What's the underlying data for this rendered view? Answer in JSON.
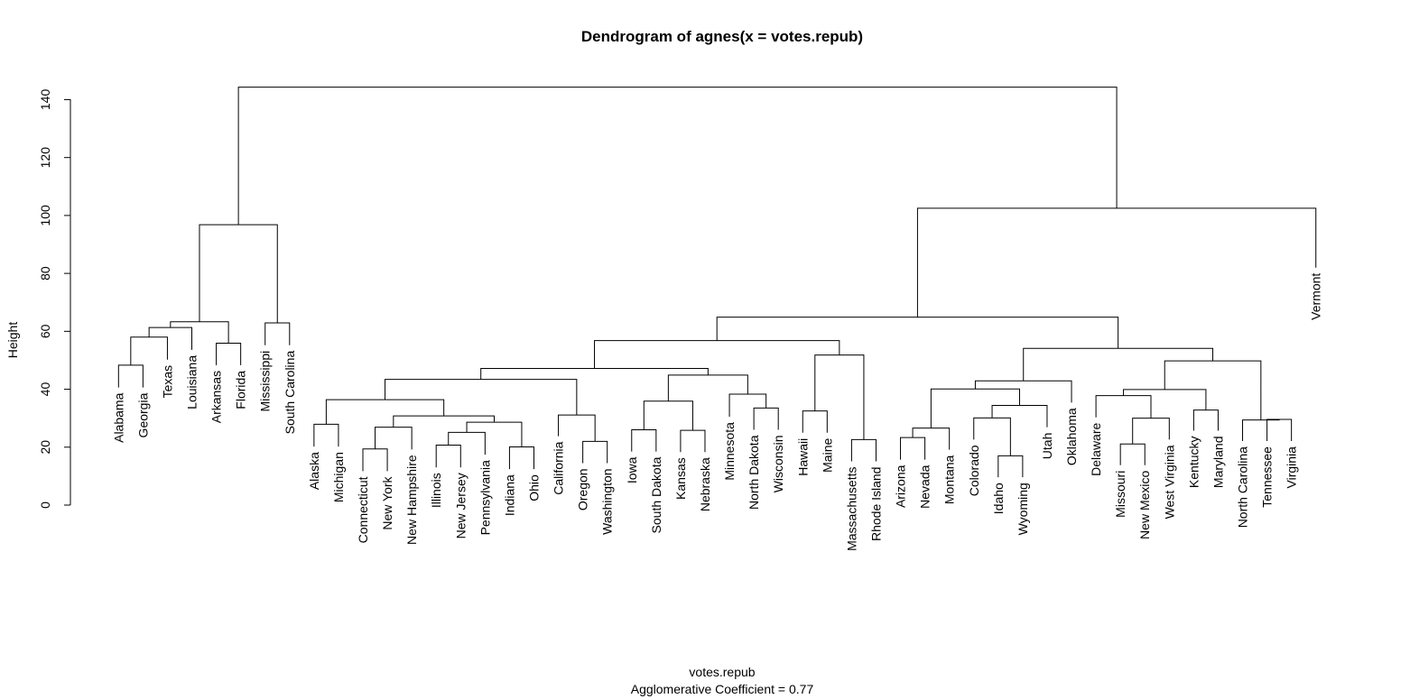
{
  "chart_data": {
    "type": "dendrogram",
    "title": "Dendrogram of  agnes(x = votes.repub)",
    "xlabel": "votes.repub",
    "subtitle": "Agglomerative Coefficient =  0.77",
    "ylabel": "Height",
    "ylim": [
      0,
      140
    ],
    "yticks": [
      0,
      20,
      40,
      60,
      80,
      100,
      120,
      140
    ],
    "leaves": [
      {
        "label": "Alabama",
        "x": 1,
        "h": 40.6
      },
      {
        "label": "Georgia",
        "x": 2,
        "h": 40.6
      },
      {
        "label": "Texas",
        "x": 3,
        "h": 50.2
      },
      {
        "label": "Louisiana",
        "x": 4,
        "h": 53.6
      },
      {
        "label": "Arkansas",
        "x": 5,
        "h": 48.3
      },
      {
        "label": "Florida",
        "x": 6,
        "h": 48.3
      },
      {
        "label": "Mississippi",
        "x": 7,
        "h": 55.2
      },
      {
        "label": "South Carolina",
        "x": 8,
        "h": 55.2
      },
      {
        "label": "Alaska",
        "x": 9,
        "h": 20.2
      },
      {
        "label": "Michigan",
        "x": 10,
        "h": 20.2
      },
      {
        "label": "Connecticut",
        "x": 11,
        "h": 11.7
      },
      {
        "label": "New York",
        "x": 12,
        "h": 11.7
      },
      {
        "label": "New Hampshire",
        "x": 13,
        "h": 19.2
      },
      {
        "label": "Illinois",
        "x": 14,
        "h": 13.0
      },
      {
        "label": "New Jersey",
        "x": 15,
        "h": 13.0
      },
      {
        "label": "Pennsylvania",
        "x": 16,
        "h": 17.4
      },
      {
        "label": "Indiana",
        "x": 17,
        "h": 12.4
      },
      {
        "label": "Ohio",
        "x": 18,
        "h": 12.4
      },
      {
        "label": "California",
        "x": 19,
        "h": 23.8
      },
      {
        "label": "Oregon",
        "x": 20,
        "h": 14.5
      },
      {
        "label": "Washington",
        "x": 21,
        "h": 14.5
      },
      {
        "label": "Iowa",
        "x": 22,
        "h": 18.5
      },
      {
        "label": "South Dakota",
        "x": 23,
        "h": 18.5
      },
      {
        "label": "Kansas",
        "x": 24,
        "h": 18.3
      },
      {
        "label": "Nebraska",
        "x": 25,
        "h": 18.3
      },
      {
        "label": "Minnesota",
        "x": 26,
        "h": 30.5
      },
      {
        "label": "North Dakota",
        "x": 27,
        "h": 26.0
      },
      {
        "label": "Wisconsin",
        "x": 28,
        "h": 26.0
      },
      {
        "label": "Hawaii",
        "x": 29,
        "h": 25.0
      },
      {
        "label": "Maine",
        "x": 30,
        "h": 25.0
      },
      {
        "label": "Massachusetts",
        "x": 31,
        "h": 15.1
      },
      {
        "label": "Rhode Island",
        "x": 32,
        "h": 15.1
      },
      {
        "label": "Arizona",
        "x": 33,
        "h": 15.7
      },
      {
        "label": "Nevada",
        "x": 34,
        "h": 15.7
      },
      {
        "label": "Montana",
        "x": 35,
        "h": 19.1
      },
      {
        "label": "Colorado",
        "x": 36,
        "h": 22.6
      },
      {
        "label": "Idaho",
        "x": 37,
        "h": 9.6
      },
      {
        "label": "Wyoming",
        "x": 38,
        "h": 9.6
      },
      {
        "label": "Utah",
        "x": 39,
        "h": 26.9
      },
      {
        "label": "Oklahoma",
        "x": 40,
        "h": 35.4
      },
      {
        "label": "Delaware",
        "x": 41,
        "h": 30.3
      },
      {
        "label": "Missouri",
        "x": 42,
        "h": 13.8
      },
      {
        "label": "New Mexico",
        "x": 43,
        "h": 13.8
      },
      {
        "label": "West Virginia",
        "x": 44,
        "h": 22.6
      },
      {
        "label": "Kentucky",
        "x": 45,
        "h": 25.7
      },
      {
        "label": "Maryland",
        "x": 46,
        "h": 25.7
      },
      {
        "label": "North Carolina",
        "x": 47,
        "h": 22.1
      },
      {
        "label": "Tennessee",
        "x": 48,
        "h": 22.1
      },
      {
        "label": "Virginia",
        "x": 49,
        "h": 22.1
      },
      {
        "label": "Vermont",
        "x": 50,
        "h": 82.0
      }
    ],
    "merges": [
      {
        "left": 1,
        "right": 2,
        "height": 48.3
      },
      {
        "left": 1.5,
        "right": 3,
        "height": 58.0
      },
      {
        "left": 2.25,
        "right": 4,
        "height": 61.3
      },
      {
        "left": 5,
        "right": 6,
        "height": 55.9
      },
      {
        "left": 3.125,
        "right": 5.5,
        "height": 63.3
      },
      {
        "left": 7,
        "right": 8,
        "height": 62.9
      },
      {
        "left": 4.3125,
        "right": 7.5,
        "height": 96.8
      },
      {
        "left": 9,
        "right": 10,
        "height": 27.9
      },
      {
        "left": 11,
        "right": 12,
        "height": 19.4
      },
      {
        "left": 11.5,
        "right": 13,
        "height": 26.9
      },
      {
        "left": 14,
        "right": 15,
        "height": 20.7
      },
      {
        "left": 14.5,
        "right": 16,
        "height": 25.1
      },
      {
        "left": 17,
        "right": 18,
        "height": 20.1
      },
      {
        "left": 15.25,
        "right": 17.5,
        "height": 28.6
      },
      {
        "left": 12.25,
        "right": 16.375,
        "height": 30.8
      },
      {
        "left": 9.5,
        "right": 14.3125,
        "height": 36.4
      },
      {
        "left": 20,
        "right": 21,
        "height": 22.0
      },
      {
        "left": 19,
        "right": 20.5,
        "height": 31.1
      },
      {
        "left": 11.90625,
        "right": 19.75,
        "height": 43.4
      },
      {
        "left": 22,
        "right": 23,
        "height": 26.0
      },
      {
        "left": 24,
        "right": 25,
        "height": 25.8
      },
      {
        "left": 22.5,
        "right": 24.5,
        "height": 35.9
      },
      {
        "left": 27,
        "right": 28,
        "height": 33.5
      },
      {
        "left": 26,
        "right": 27.5,
        "height": 38.3
      },
      {
        "left": 23.5,
        "right": 26.75,
        "height": 44.9
      },
      {
        "left": 15.828125,
        "right": 25.125,
        "height": 47.2
      },
      {
        "left": 29,
        "right": 30,
        "height": 32.5
      },
      {
        "left": 31,
        "right": 32,
        "height": 22.6
      },
      {
        "left": 29.5,
        "right": 31.5,
        "height": 51.8
      },
      {
        "left": 20.4765625,
        "right": 30.5,
        "height": 56.8
      },
      {
        "left": 33,
        "right": 34,
        "height": 23.3
      },
      {
        "left": 33.5,
        "right": 35,
        "height": 26.6
      },
      {
        "left": 37,
        "right": 38,
        "height": 17.0
      },
      {
        "left": 36,
        "right": 37.5,
        "height": 30.1
      },
      {
        "left": 36.75,
        "right": 39,
        "height": 34.4
      },
      {
        "left": 34.25,
        "right": 37.875,
        "height": 40.1
      },
      {
        "left": 36.0625,
        "right": 40,
        "height": 42.9
      },
      {
        "left": 42,
        "right": 43,
        "height": 21.1
      },
      {
        "left": 42.5,
        "right": 44,
        "height": 30.0
      },
      {
        "left": 41,
        "right": 43.25,
        "height": 37.8
      },
      {
        "left": 45,
        "right": 46,
        "height": 32.8
      },
      {
        "left": 42.125,
        "right": 45.5,
        "height": 39.9
      },
      {
        "left": 48,
        "right": 49,
        "height": 29.6
      },
      {
        "left": 47,
        "right": 48.5,
        "height": 29.4
      },
      {
        "left": 43.8125,
        "right": 47.75,
        "height": 49.8
      },
      {
        "left": 38.03125,
        "right": 45.78125,
        "height": 54.1
      },
      {
        "left": 25.48828125,
        "right": 41.90625,
        "height": 64.9
      },
      {
        "left": 33.697265625,
        "right": 50,
        "height": 102.5
      },
      {
        "left": 5.90625,
        "right": 41.8486328125,
        "height": 144.3
      }
    ]
  }
}
